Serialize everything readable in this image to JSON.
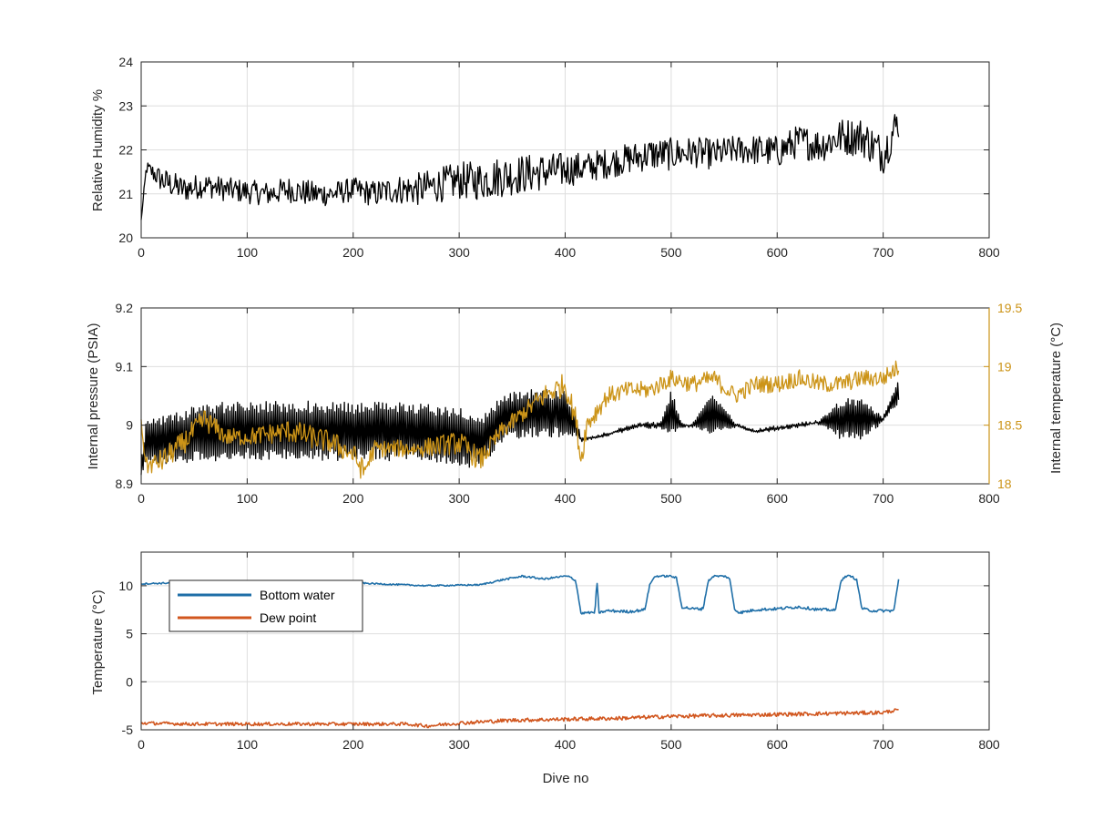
{
  "colors": {
    "black_series": "#000000",
    "internal_temperature": "#CC9418",
    "bottom_water": "#1F6FA8",
    "dew_point": "#D1561E",
    "grid": "#DEDEDE",
    "axis": "#262626"
  },
  "chart_data": [
    {
      "type": "line",
      "xlabel": "",
      "ylabel": "Relative Humidity %",
      "xlim": [
        0,
        800
      ],
      "ylim": [
        20,
        24
      ],
      "xticks": [
        "0",
        "100",
        "200",
        "300",
        "400",
        "500",
        "600",
        "700",
        "800"
      ],
      "yticks": [
        "20",
        "21",
        "22",
        "23",
        "24"
      ],
      "grid": true,
      "series": [
        {
          "color_key": "black_series",
          "x": [
            0,
            5,
            10,
            20,
            40,
            60,
            80,
            100,
            120,
            140,
            160,
            180,
            200,
            220,
            240,
            260,
            280,
            300,
            320,
            340,
            360,
            380,
            400,
            420,
            440,
            460,
            480,
            500,
            520,
            540,
            560,
            580,
            600,
            620,
            640,
            660,
            680,
            700,
            715
          ],
          "y": [
            20.4,
            21.6,
            21.5,
            21.3,
            21.1,
            21.2,
            21.1,
            21.05,
            21.0,
            21.1,
            21.0,
            21.0,
            21.1,
            21.0,
            21.1,
            21.1,
            21.2,
            21.3,
            21.3,
            21.4,
            21.45,
            21.5,
            21.55,
            21.6,
            21.7,
            21.8,
            21.9,
            21.9,
            21.95,
            21.9,
            22.0,
            22.0,
            21.95,
            22.2,
            22.1,
            22.3,
            22.3,
            21.9,
            22.7
          ],
          "noise": [
            0.05,
            0.3,
            0.4,
            0.6,
            0.6,
            0.55,
            0.55,
            0.55,
            0.55,
            0.6,
            0.6,
            0.55,
            0.55,
            0.6,
            0.65,
            0.75,
            0.8,
            0.85,
            0.9,
            0.95,
            0.9,
            0.85,
            0.8,
            0.7,
            0.7,
            0.7,
            0.75,
            0.75,
            0.7,
            0.7,
            0.65,
            0.7,
            0.75,
            0.75,
            0.8,
            0.85,
            0.9,
            0.9,
            0.9
          ]
        }
      ]
    },
    {
      "type": "line",
      "xlabel": "",
      "ylabel": "Internal pressure (PSIA)",
      "ylabel_right": "Internal temperature (°C)",
      "xlim": [
        0,
        800
      ],
      "ylim": [
        8.9,
        9.2
      ],
      "ylim_right": [
        18,
        19.5
      ],
      "xticks": [
        "0",
        "100",
        "200",
        "300",
        "400",
        "500",
        "600",
        "700",
        "800"
      ],
      "yticks": [
        "8.9",
        "9",
        "9.1",
        "9.2"
      ],
      "yticks_right": [
        "18",
        "18.5",
        "19",
        "19.5"
      ],
      "grid": true,
      "series": [
        {
          "name": "Internal pressure",
          "axis": "left",
          "color_key": "black_series",
          "x": [
            0,
            5,
            40,
            60,
            100,
            140,
            200,
            250,
            300,
            320,
            340,
            360,
            380,
            400,
            410,
            415,
            430,
            450,
            470,
            490,
            500,
            510,
            520,
            540,
            560,
            580,
            600,
            620,
            640,
            660,
            680,
            700,
            715
          ],
          "y": [
            8.93,
            8.97,
            8.98,
            8.99,
            8.99,
            8.99,
            8.99,
            8.99,
            8.98,
            8.97,
            9.01,
            9.02,
            9.02,
            9.02,
            9.0,
            8.975,
            8.98,
            8.99,
            9.0,
            9.0,
            9.02,
            9.0,
            9.0,
            9.02,
            9.0,
            8.99,
            8.995,
            9.0,
            9.005,
            9.01,
            9.01,
            9.01,
            9.06
          ],
          "noise": [
            0.03,
            0.08,
            0.09,
            0.1,
            0.1,
            0.1,
            0.1,
            0.1,
            0.1,
            0.09,
            0.08,
            0.08,
            0.08,
            0.08,
            0.04,
            0.005,
            0.005,
            0.005,
            0.005,
            0.01,
            0.08,
            0.005,
            0.005,
            0.08,
            0.005,
            0.005,
            0.005,
            0.005,
            0.005,
            0.07,
            0.07,
            0.005,
            0.04
          ]
        },
        {
          "name": "Internal temperature",
          "axis": "right",
          "color_key": "internal_temperature",
          "x": [
            0,
            5,
            20,
            40,
            60,
            80,
            100,
            140,
            180,
            200,
            210,
            220,
            260,
            300,
            320,
            340,
            360,
            380,
            400,
            410,
            415,
            420,
            440,
            460,
            480,
            500,
            520,
            540,
            560,
            580,
            600,
            620,
            640,
            660,
            680,
            700,
            715
          ],
          "y": [
            18.5,
            18.15,
            18.2,
            18.35,
            18.55,
            18.4,
            18.4,
            18.45,
            18.35,
            18.25,
            18.1,
            18.3,
            18.3,
            18.35,
            18.2,
            18.45,
            18.6,
            18.75,
            18.85,
            18.55,
            18.2,
            18.5,
            18.75,
            18.8,
            18.8,
            18.9,
            18.85,
            18.9,
            18.75,
            18.85,
            18.85,
            18.9,
            18.85,
            18.85,
            18.9,
            18.9,
            19.0
          ],
          "noise": [
            0.1,
            0.15,
            0.2,
            0.2,
            0.2,
            0.15,
            0.15,
            0.2,
            0.2,
            0.2,
            0.2,
            0.15,
            0.15,
            0.2,
            0.2,
            0.15,
            0.15,
            0.2,
            0.2,
            0.2,
            0.2,
            0.2,
            0.15,
            0.15,
            0.15,
            0.15,
            0.15,
            0.15,
            0.15,
            0.15,
            0.15,
            0.15,
            0.15,
            0.15,
            0.15,
            0.15,
            0.15
          ]
        }
      ]
    },
    {
      "type": "line",
      "xlabel": "Dive no",
      "ylabel": "Temperature (°C)",
      "xlim": [
        0,
        800
      ],
      "ylim": [
        -5,
        13.5
      ],
      "xticks": [
        "0",
        "100",
        "200",
        "300",
        "400",
        "500",
        "600",
        "700",
        "800"
      ],
      "yticks": [
        "-5",
        "0",
        "5",
        "10"
      ],
      "ytick_values": [
        -5,
        0,
        5,
        10
      ],
      "grid": true,
      "legend_placement": "top-left",
      "series": [
        {
          "name": "Bottom water",
          "color_key": "bottom_water",
          "x": [
            0,
            60,
            110,
            200,
            270,
            320,
            340,
            360,
            380,
            400,
            405,
            410,
            415,
            420,
            428,
            430,
            432,
            440,
            460,
            475,
            480,
            485,
            500,
            505,
            510,
            515,
            520,
            530,
            535,
            540,
            550,
            555,
            560,
            565,
            570,
            580,
            600,
            620,
            640,
            650,
            655,
            660,
            665,
            670,
            675,
            680,
            690,
            700,
            710,
            715
          ],
          "y": [
            10.2,
            10.4,
            10.4,
            10.3,
            10.0,
            10.1,
            10.6,
            11.0,
            10.7,
            11.0,
            10.9,
            10.5,
            7.1,
            7.2,
            7.2,
            10.5,
            7.2,
            7.4,
            7.3,
            7.5,
            10.2,
            11.0,
            11.0,
            10.8,
            7.8,
            7.7,
            7.6,
            7.6,
            10.5,
            11.0,
            11.0,
            10.8,
            7.5,
            7.2,
            7.3,
            7.5,
            7.6,
            7.8,
            7.5,
            7.5,
            7.4,
            10.5,
            11.0,
            11.0,
            10.6,
            7.6,
            7.4,
            7.4,
            7.4,
            10.9
          ],
          "noise": [
            0.15,
            0.15,
            0.15,
            0.15,
            0.15,
            0.15,
            0.2,
            0.2,
            0.2,
            0.2,
            0.2,
            0.2,
            0.2,
            0.2,
            0.2,
            0.2,
            0.2,
            0.3,
            0.3,
            0.3,
            0.2,
            0.2,
            0.2,
            0.2,
            0.3,
            0.3,
            0.3,
            0.3,
            0.2,
            0.2,
            0.2,
            0.2,
            0.3,
            0.3,
            0.3,
            0.3,
            0.3,
            0.3,
            0.3,
            0.3,
            0.3,
            0.2,
            0.2,
            0.2,
            0.2,
            0.3,
            0.3,
            0.3,
            0.3,
            0.2
          ]
        },
        {
          "name": "Dew point",
          "color_key": "dew_point",
          "x": [
            0,
            50,
            100,
            150,
            200,
            250,
            270,
            300,
            350,
            400,
            450,
            500,
            550,
            600,
            650,
            700,
            715
          ],
          "y": [
            -4.3,
            -4.4,
            -4.4,
            -4.4,
            -4.4,
            -4.4,
            -4.6,
            -4.3,
            -4.0,
            -3.9,
            -3.8,
            -3.6,
            -3.5,
            -3.4,
            -3.3,
            -3.2,
            -2.9
          ],
          "noise": [
            0.35,
            0.35,
            0.35,
            0.35,
            0.35,
            0.35,
            0.35,
            0.4,
            0.4,
            0.4,
            0.4,
            0.4,
            0.4,
            0.4,
            0.4,
            0.4,
            0.3
          ]
        }
      ]
    }
  ]
}
